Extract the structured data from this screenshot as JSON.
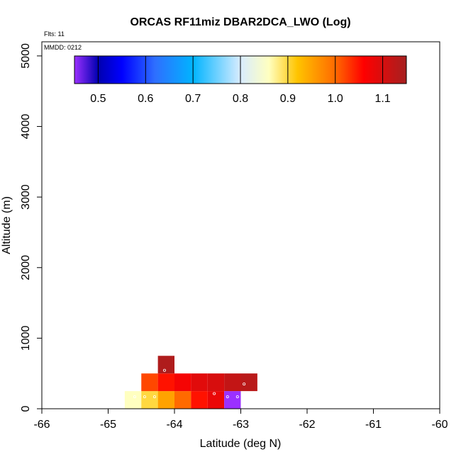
{
  "chart_data": {
    "type": "heatmap",
    "title": "ORCAS RF11miz DBAR2DCA_LWO (Log)",
    "annotations": {
      "flights": "Flts: 11",
      "date": "MMDD: 0212"
    },
    "xlabel": "Latitude (deg N)",
    "ylabel": "Altitude (m)",
    "xlim": [
      -66,
      -60
    ],
    "ylim": [
      0,
      5200
    ],
    "x_ticks": [
      -66,
      -65,
      -64,
      -63,
      -62,
      -61,
      -60
    ],
    "y_ticks": [
      0,
      1000,
      2000,
      3000,
      4000,
      5000
    ],
    "grid": false,
    "colorbar": {
      "min": 0.45,
      "max": 1.15,
      "ticks": [
        "0.5",
        "0.6",
        "0.7",
        "0.8",
        "0.9",
        "1.0",
        "1.1"
      ],
      "tick_values": [
        0.5,
        0.6,
        0.7,
        0.8,
        0.9,
        1.0,
        1.1
      ],
      "stops": [
        {
          "v": 0.45,
          "c": "#9b30ff"
        },
        {
          "v": 0.5,
          "c": "#0000b0"
        },
        {
          "v": 0.55,
          "c": "#0000ff"
        },
        {
          "v": 0.62,
          "c": "#2e6fff"
        },
        {
          "v": 0.7,
          "c": "#00b4ff"
        },
        {
          "v": 0.8,
          "c": "#d8ecff"
        },
        {
          "v": 0.86,
          "c": "#ffffc0"
        },
        {
          "v": 0.92,
          "c": "#ffc400"
        },
        {
          "v": 1.0,
          "c": "#ff6a00"
        },
        {
          "v": 1.06,
          "c": "#ff0000"
        },
        {
          "v": 1.15,
          "c": "#a52020"
        }
      ]
    },
    "cell_size": {
      "dlat": 0.25,
      "dalt": 250
    },
    "cells": [
      {
        "lat": -64.75,
        "alt": 0,
        "value": 0.86
      },
      {
        "lat": -64.5,
        "alt": 0,
        "value": 0.9
      },
      {
        "lat": -64.25,
        "alt": 0,
        "value": 0.95
      },
      {
        "lat": -64.0,
        "alt": 0,
        "value": 1.0
      },
      {
        "lat": -63.75,
        "alt": 0,
        "value": 1.05
      },
      {
        "lat": -63.5,
        "alt": 0,
        "value": 1.08
      },
      {
        "lat": -63.25,
        "alt": 0,
        "value": 0.45
      },
      {
        "lat": -64.5,
        "alt": 250,
        "value": 1.02
      },
      {
        "lat": -64.25,
        "alt": 250,
        "value": 1.05
      },
      {
        "lat": -64.0,
        "alt": 250,
        "value": 1.07
      },
      {
        "lat": -63.75,
        "alt": 250,
        "value": 1.09
      },
      {
        "lat": -63.5,
        "alt": 250,
        "value": 1.1
      },
      {
        "lat": -63.25,
        "alt": 250,
        "value": 1.12
      },
      {
        "lat": -63.0,
        "alt": 250,
        "value": 1.13
      },
      {
        "lat": -64.25,
        "alt": 500,
        "value": 1.14
      }
    ],
    "points": [
      {
        "lat": -64.6,
        "alt": 170
      },
      {
        "lat": -64.45,
        "alt": 170
      },
      {
        "lat": -64.3,
        "alt": 170
      },
      {
        "lat": -64.15,
        "alt": 545
      },
      {
        "lat": -63.4,
        "alt": 215
      },
      {
        "lat": -63.2,
        "alt": 170
      },
      {
        "lat": -63.05,
        "alt": 170
      },
      {
        "lat": -62.95,
        "alt": 350
      }
    ]
  }
}
